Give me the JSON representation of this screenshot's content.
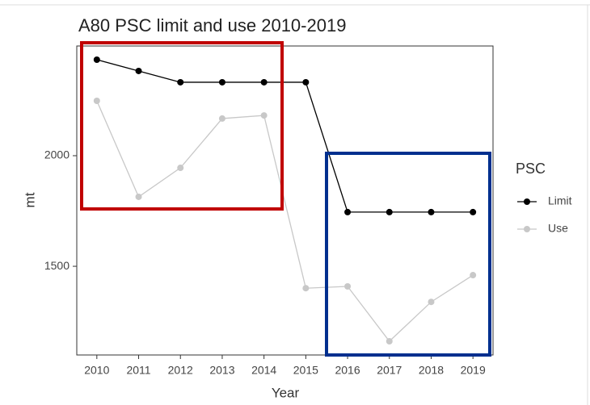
{
  "chart_data": {
    "type": "line",
    "title": "A80 PSC limit and use 2010-2019",
    "x_label": "Year",
    "y_label": "mt",
    "legend_title": "PSC",
    "x": [
      2010,
      2011,
      2012,
      2013,
      2014,
      2015,
      2016,
      2017,
      2018,
      2019
    ],
    "series": [
      {
        "name": "Limit",
        "color": "#000000",
        "values": [
          2434,
          2383,
          2332,
          2332,
          2332,
          2332,
          1745,
          1745,
          1745,
          1745
        ]
      },
      {
        "name": "Use",
        "color": "#c8c8c8",
        "values": [
          2248,
          1814,
          1945,
          2168,
          2182,
          1401,
          1409,
          1161,
          1339,
          1460
        ]
      }
    ],
    "xlim": [
      2009.52,
      2019.48
    ],
    "xticks": [
      2010,
      2011,
      2012,
      2013,
      2014,
      2015,
      2016,
      2017,
      2018,
      2019
    ],
    "ylim": [
      1099,
      2496
    ],
    "yticks": [
      1500,
      2000
    ],
    "grid": false
  }
}
